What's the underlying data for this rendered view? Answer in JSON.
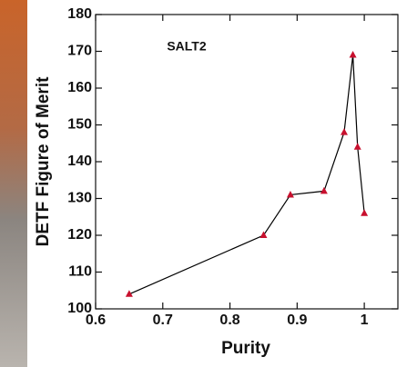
{
  "chart_data": {
    "type": "line",
    "annotation": "SALT2",
    "x_label": "Purity",
    "y_label": "DETF Figure of Merit",
    "x": [
      0.65,
      0.85,
      0.89,
      0.94,
      0.97,
      0.983,
      0.99,
      1.0
    ],
    "series": [
      {
        "color": "#c8102e",
        "values": [
          104,
          120,
          131,
          132,
          148,
          169,
          144,
          126
        ]
      }
    ],
    "xlim": [
      0.6,
      1.05
    ],
    "xticks": [
      0.6,
      0.7,
      0.8,
      0.9,
      1
    ],
    "ylim": [
      100,
      180
    ],
    "yticks": [
      100,
      110,
      120,
      130,
      140,
      150,
      160,
      170,
      180
    ]
  }
}
